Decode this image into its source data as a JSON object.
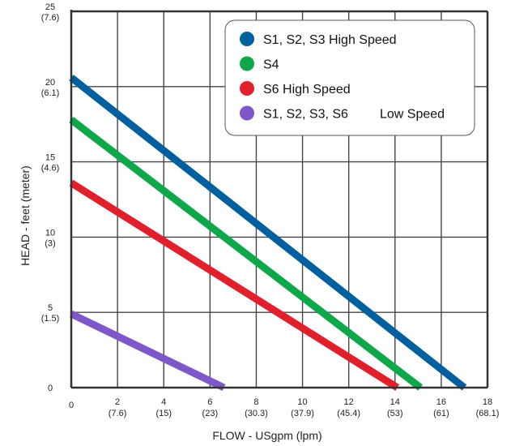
{
  "chart_data": {
    "type": "line",
    "xlabel": "FLOW - USgpm (lpm)",
    "ylabel": "HEAD - feet (meter)",
    "xlim": [
      0,
      18
    ],
    "ylim": [
      0,
      25
    ],
    "grid": true,
    "legend_position": "top-right",
    "x_ticks": [
      {
        "value": 0,
        "label": "0",
        "sub": ""
      },
      {
        "value": 2,
        "label": "2",
        "sub": "(7.6)"
      },
      {
        "value": 4,
        "label": "4",
        "sub": "(15)"
      },
      {
        "value": 6,
        "label": "6",
        "sub": "(23)"
      },
      {
        "value": 8,
        "label": "8",
        "sub": "(30.3)"
      },
      {
        "value": 10,
        "label": "10",
        "sub": "(37.9)"
      },
      {
        "value": 12,
        "label": "12",
        "sub": "(45.4)"
      },
      {
        "value": 14,
        "label": "14",
        "sub": "(53)"
      },
      {
        "value": 16,
        "label": "16",
        "sub": "(61)"
      },
      {
        "value": 18,
        "label": "18",
        "sub": "(68.1)"
      }
    ],
    "y_ticks": [
      {
        "value": 0,
        "label": "0",
        "sub": ""
      },
      {
        "value": 5,
        "label": "5",
        "sub": "(1.5)"
      },
      {
        "value": 10,
        "label": "10",
        "sub": "(3)"
      },
      {
        "value": 15,
        "label": "15",
        "sub": "(4.6)"
      },
      {
        "value": 20,
        "label": "20",
        "sub": "(6.1)"
      },
      {
        "value": 25,
        "label": "25",
        "sub": "(7.6)"
      }
    ],
    "series": [
      {
        "name": "S1, S2, S3 High Speed",
        "color": "#00609f",
        "x": [
          0,
          17.0
        ],
        "y": [
          20.6,
          0
        ]
      },
      {
        "name": "S4",
        "color": "#0ea84a",
        "x": [
          0,
          15.1
        ],
        "y": [
          17.8,
          0
        ]
      },
      {
        "name": "S6 High Speed",
        "color": "#e2202c",
        "x": [
          0,
          14.1
        ],
        "y": [
          13.6,
          0
        ]
      },
      {
        "name": "S1, S2, S3, S6",
        "name_suffix": "Low Speed",
        "color": "#7e57c8",
        "x": [
          0,
          6.6
        ],
        "y": [
          4.9,
          0
        ]
      }
    ]
  }
}
